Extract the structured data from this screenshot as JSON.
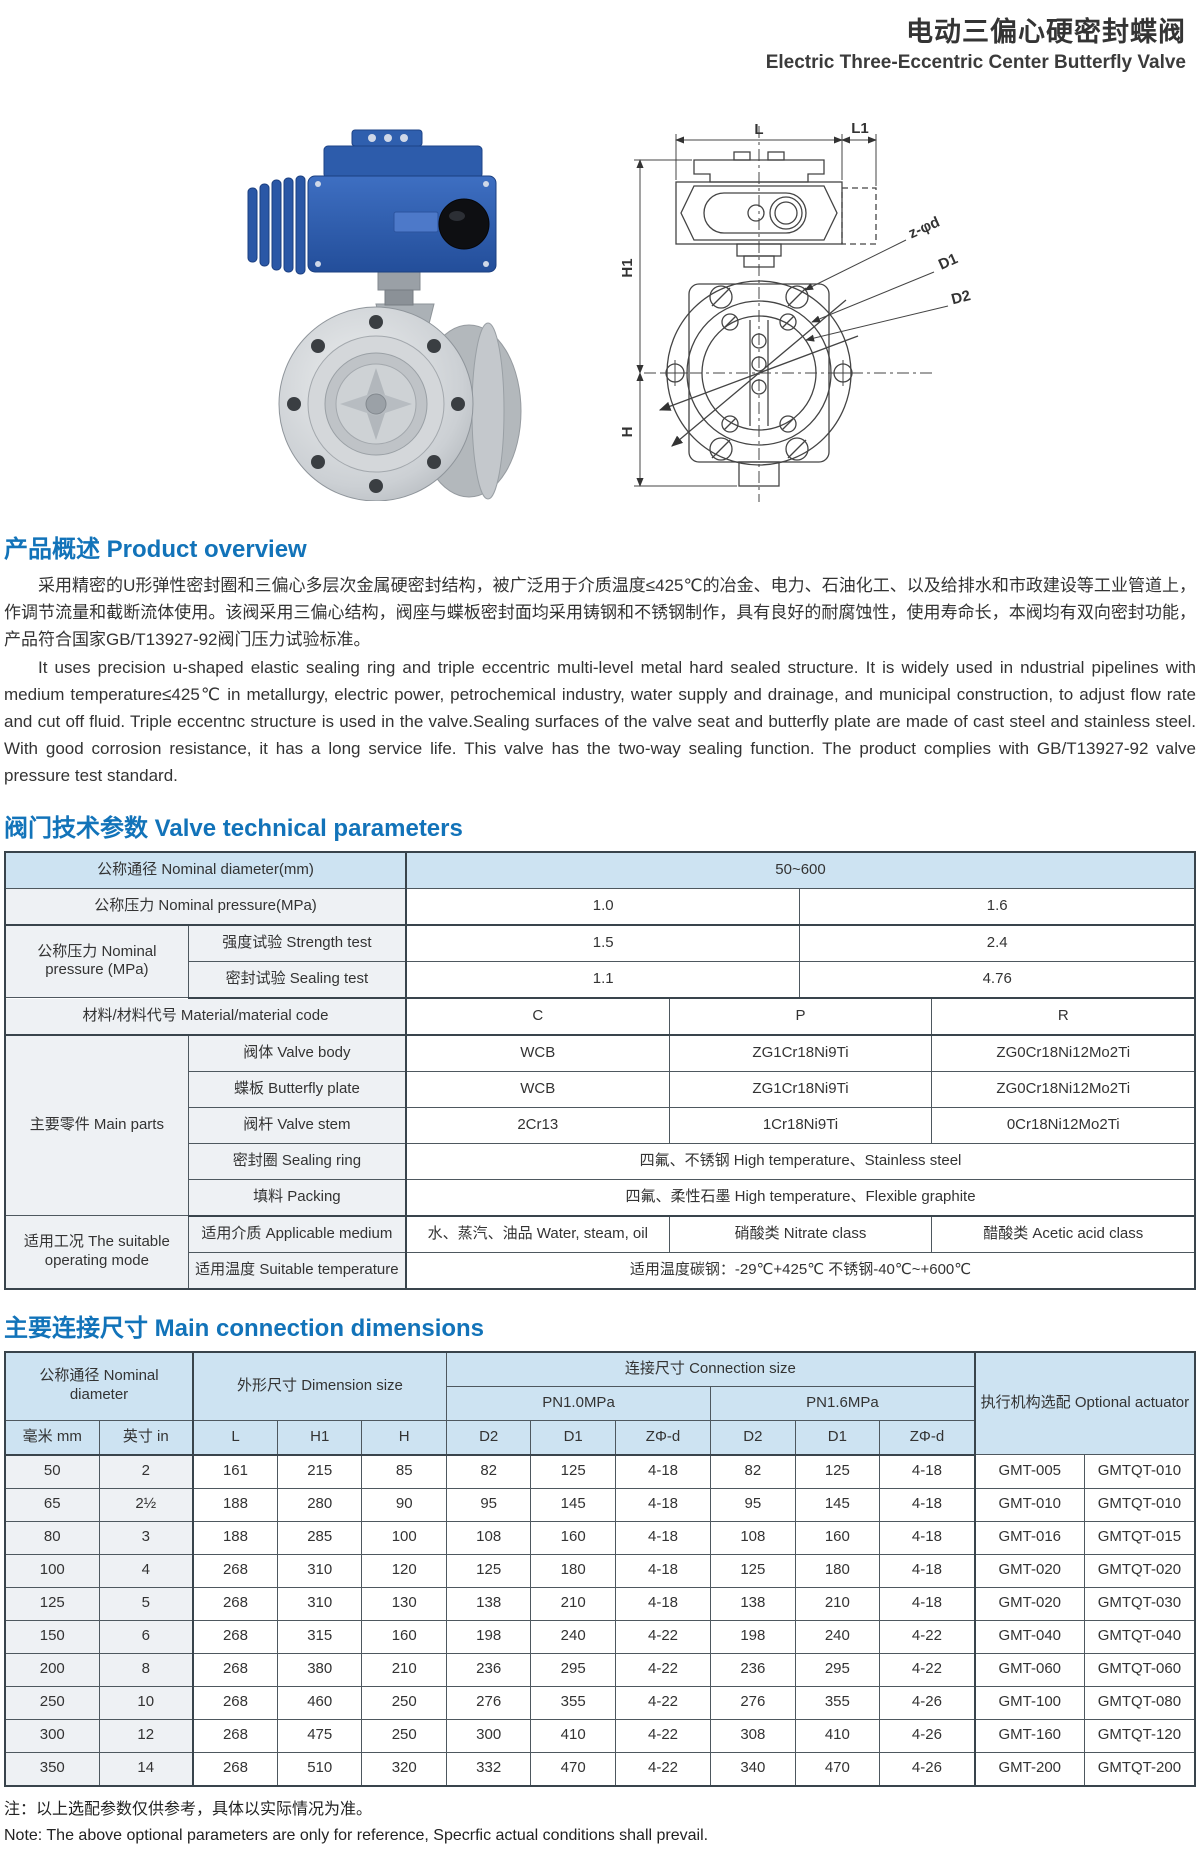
{
  "header": {
    "title_zh": "电动三偏心硬密封蝶阀",
    "title_en": "Electric Three-Eccentric Center Butterfly Valve"
  },
  "overview": {
    "heading": "产品概述 Product overview",
    "para_zh": "采用精密的U形弹性密封圈和三偏心多层次金属硬密封结构，被广泛用于介质温度≤425℃的冶金、电力、石油化工、以及给排水和市政建设等工业管道上，作调节流量和截断流体使用。该阀采用三偏心结构，阀座与蝶板密封面均采用铸钢和不锈钢制作，具有良好的耐腐蚀性，使用寿命长，本阀均有双向密封功能，产品符合国家GB/T13927-92阀门压力试验标准。",
    "para_en": "It uses precision u-shaped elastic sealing ring and triple eccentric multi-level metal hard sealed structure. It is widely used in ndustrial pipelines with medium temperature≤425℃ in metallurgy, electric power, petrochemical industry, water supply and drainage, and municipal construction, to adjust flow rate and cut off fluid. Triple eccentnc structure is used in the valve.Sealing surfaces of the valve seat and butterfly plate are made of cast steel and stainless steel. With good corrosion resistance, it has a long service life. This valve has the two-way sealing function. The product complies with GB/T13927-92 valve pressure test standard."
  },
  "tech": {
    "heading": "阀门技术参数 Valve technical parameters",
    "nd_label": "公称通径 Nominal diameter(mm)",
    "nd_value": "50~600",
    "np_label": "公称压力 Nominal pressure(MPa)",
    "np_10": "1.0",
    "np_16": "1.6",
    "np2_label": "公称压力 Nominal pressure (MPa)",
    "strength_label": "强度试验 Strength test",
    "strength_10": "1.5",
    "strength_16": "2.4",
    "sealing_label": "密封试验 Sealing test",
    "sealing_10": "1.1",
    "sealing_16": "4.76",
    "material_label": "材料/材料代号 Material/material code",
    "mat_c": "C",
    "mat_p": "P",
    "mat_r": "R",
    "parts_label": "主要零件 Main parts",
    "body_label": "阀体 Valve body",
    "body_c": "WCB",
    "body_p": "ZG1Cr18Ni9Ti",
    "body_r": "ZG0Cr18Ni12Mo2Ti",
    "plate_label": "蝶板 Butterfly plate",
    "plate_c": "WCB",
    "plate_p": "ZG1Cr18Ni9Ti",
    "plate_r": "ZG0Cr18Ni12Mo2Ti",
    "stem_label": "阀杆 Valve stem",
    "stem_c": "2Cr13",
    "stem_p": "1Cr18Ni9Ti",
    "stem_r": "0Cr18Ni12Mo2Ti",
    "ring_label": "密封圈 Sealing ring",
    "ring_value": "四氟、不锈钢 High temperature、Stainless steel",
    "packing_label": "填料 Packing",
    "packing_value": "四氟、柔性石墨 High temperature、Flexible graphite",
    "mode_label": "适用工况 The suitable operating mode",
    "medium_label": "适用介质 Applicable medium",
    "medium_water": "水、蒸汽、油品 Water, steam, oil",
    "medium_nitrate": "硝酸类 Nitrate class",
    "medium_acetic": "醋酸类 Acetic acid class",
    "temp_label": "适用温度 Suitable temperature",
    "temp_value": "适用温度碳钢：-29℃+425℃ 不锈钢-40℃~+600℃"
  },
  "dims": {
    "heading": "主要连接尺寸 Main connection dimensions",
    "h_nominal": "公称通径 Nominal diameter",
    "h_dimension": "外形尺寸 Dimension size",
    "h_connection": "连接尺寸 Connection size",
    "h_pn10": "PN1.0MPa",
    "h_pn16": "PN1.6MPa",
    "h_actuator": "执行机构选配 Optional actuator",
    "h_cols": [
      "毫米 mm",
      "英寸 in",
      "L",
      "H1",
      "H",
      "D2",
      "D1",
      "ZΦ-d",
      "D2",
      "D1",
      "ZΦ-d"
    ],
    "rows": [
      [
        "50",
        "2",
        "161",
        "215",
        "85",
        "82",
        "125",
        "4-18",
        "82",
        "125",
        "4-18",
        "GMT-005",
        "GMTQT-010"
      ],
      [
        "65",
        "2½",
        "188",
        "280",
        "90",
        "95",
        "145",
        "4-18",
        "95",
        "145",
        "4-18",
        "GMT-010",
        "GMTQT-010"
      ],
      [
        "80",
        "3",
        "188",
        "285",
        "100",
        "108",
        "160",
        "4-18",
        "108",
        "160",
        "4-18",
        "GMT-016",
        "GMTQT-015"
      ],
      [
        "100",
        "4",
        "268",
        "310",
        "120",
        "125",
        "180",
        "4-18",
        "125",
        "180",
        "4-18",
        "GMT-020",
        "GMTQT-020"
      ],
      [
        "125",
        "5",
        "268",
        "310",
        "130",
        "138",
        "210",
        "4-18",
        "138",
        "210",
        "4-18",
        "GMT-020",
        "GMTQT-030"
      ],
      [
        "150",
        "6",
        "268",
        "315",
        "160",
        "198",
        "240",
        "4-22",
        "198",
        "240",
        "4-22",
        "GMT-040",
        "GMTQT-040"
      ],
      [
        "200",
        "8",
        "268",
        "380",
        "210",
        "236",
        "295",
        "4-22",
        "236",
        "295",
        "4-22",
        "GMT-060",
        "GMTQT-060"
      ],
      [
        "250",
        "10",
        "268",
        "460",
        "250",
        "276",
        "355",
        "4-22",
        "276",
        "355",
        "4-26",
        "GMT-100",
        "GMTQT-080"
      ],
      [
        "300",
        "12",
        "268",
        "475",
        "250",
        "300",
        "410",
        "4-22",
        "308",
        "410",
        "4-26",
        "GMT-160",
        "GMTQT-120"
      ],
      [
        "350",
        "14",
        "268",
        "510",
        "320",
        "332",
        "470",
        "4-22",
        "340",
        "470",
        "4-26",
        "GMT-200",
        "GMTQT-200"
      ]
    ]
  },
  "notes": {
    "zh": "注：以上选配参数仅供参考，具体以实际情况为准。",
    "en": "Note: The above optional parameters are only for reference, Specrfic actual conditions shall prevail."
  },
  "drawing": {
    "dim_l": "L",
    "dim_l1": "L1",
    "dim_h1": "H1",
    "dim_h": "H",
    "dim_zd": "z-φd",
    "dim_d1": "D1",
    "dim_d2": "D2"
  }
}
